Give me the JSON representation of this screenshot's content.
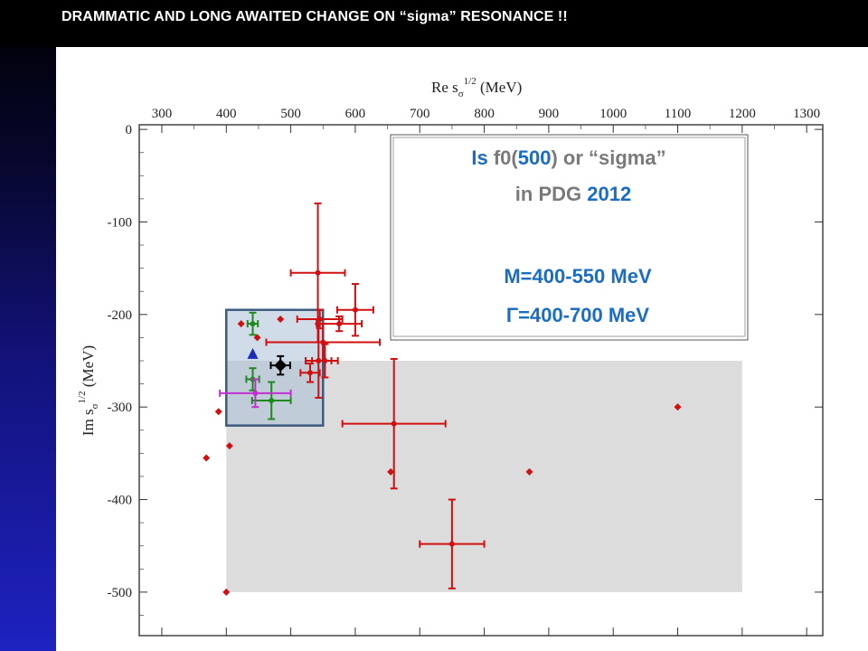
{
  "header": {
    "title": "DRAMMATIC AND LONG AWAITED CHANGE  ON “sigma” RESONANCE !!"
  },
  "chart_data": {
    "type": "scatter",
    "x_axis": {
      "label_main": "Re s",
      "label_sub": "σ",
      "label_sup": "1/2",
      "label_unit": " (MeV)",
      "range": [
        265,
        1325
      ],
      "ticks": [
        300,
        400,
        500,
        600,
        700,
        800,
        900,
        1000,
        1100,
        1200,
        1300
      ]
    },
    "y_axis": {
      "label_main": "Im s",
      "label_sub": "σ",
      "label_sup": "1/2",
      "label_unit": " (MeV)",
      "range": [
        -547,
        5
      ],
      "ticks": [
        0,
        -100,
        -200,
        -300,
        -400,
        -500
      ]
    },
    "regions": [
      {
        "kind": "gray-band",
        "x": [
          400,
          1200
        ],
        "y": [
          -500,
          -250
        ],
        "color": "#dcdcdc"
      },
      {
        "kind": "blue-box",
        "x": [
          400,
          550
        ],
        "y": [
          -320,
          -195
        ],
        "color": "#3d5a80"
      }
    ],
    "info_box": {
      "line1": {
        "is": "Is",
        "name": "f0(",
        "num": "500",
        "close": ") or “sigma”"
      },
      "line2": {
        "pre": "in PDG ",
        "year": "2012"
      },
      "mass": "M=400-550 MeV",
      "width": "Γ=400-700 MeV"
    },
    "colors": {
      "red": "#d01010",
      "green": "#1e8a1e",
      "magenta": "#c030d0",
      "blue": "#1c2db8",
      "black": "#000000",
      "accent_blue": "#1a6dc0",
      "gray_text": "#7a7a7a"
    },
    "points": [
      {
        "x": 542,
        "y": -155,
        "ex": 42,
        "ey": 75,
        "color": "red"
      },
      {
        "x": 600,
        "y": -195,
        "ex": 28,
        "ey": 28,
        "color": "red"
      },
      {
        "x": 545,
        "y": -205,
        "ex": 35,
        "ey": 10,
        "color": "red"
      },
      {
        "x": 575,
        "y": -210,
        "ex": 35,
        "ey": 8,
        "color": "red"
      },
      {
        "x": 550,
        "y": -230,
        "ex": 88,
        "ey": 20,
        "color": "red"
      },
      {
        "x": 543,
        "y": -250,
        "ex": 20,
        "ey": 40,
        "color": "red"
      },
      {
        "x": 553,
        "y": -250,
        "ex": 20,
        "ey": 18,
        "color": "red"
      },
      {
        "x": 530,
        "y": -263,
        "ex": 15,
        "ey": 10,
        "color": "red"
      },
      {
        "x": 660,
        "y": -318,
        "ex": 80,
        "ey": 70,
        "color": "red"
      },
      {
        "x": 750,
        "y": -448,
        "ex": 50,
        "ey": 48,
        "color": "red"
      },
      {
        "x": 423,
        "y": -210,
        "ex": 0,
        "ey": 0,
        "color": "red",
        "marker": "diamond"
      },
      {
        "x": 448,
        "y": -225,
        "ex": 0,
        "ey": 0,
        "color": "red",
        "marker": "diamond"
      },
      {
        "x": 484,
        "y": -205,
        "ex": 0,
        "ey": 0,
        "color": "red",
        "marker": "diamond"
      },
      {
        "x": 388,
        "y": -305,
        "ex": 0,
        "ey": 0,
        "color": "red",
        "marker": "diamond"
      },
      {
        "x": 405,
        "y": -342,
        "ex": 0,
        "ey": 0,
        "color": "red",
        "marker": "diamond"
      },
      {
        "x": 369,
        "y": -355,
        "ex": 0,
        "ey": 0,
        "color": "red",
        "marker": "diamond"
      },
      {
        "x": 400,
        "y": -500,
        "ex": 0,
        "ey": 0,
        "color": "red",
        "marker": "diamond"
      },
      {
        "x": 655,
        "y": -370,
        "ex": 0,
        "ey": 0,
        "color": "red",
        "marker": "diamond"
      },
      {
        "x": 870,
        "y": -370,
        "ex": 0,
        "ey": 0,
        "color": "red",
        "marker": "diamond"
      },
      {
        "x": 1100,
        "y": -300,
        "ex": 0,
        "ey": 0,
        "color": "red",
        "marker": "diamond"
      },
      {
        "x": 441,
        "y": -210,
        "ex": 8,
        "ey": 12,
        "color": "green"
      },
      {
        "x": 441,
        "y": -270,
        "ex": 10,
        "ey": 12,
        "color": "green"
      },
      {
        "x": 470,
        "y": -293,
        "ex": 30,
        "ey": 20,
        "color": "green"
      },
      {
        "x": 445,
        "y": -285,
        "ex": 55,
        "ey": 15,
        "color": "magenta"
      },
      {
        "x": 441,
        "y": -243,
        "ex": 0,
        "ey": 0,
        "color": "blue",
        "marker": "triangle"
      },
      {
        "x": 484,
        "y": -255,
        "ex": 15,
        "ey": 10,
        "color": "black",
        "marker": "diamond-big"
      }
    ]
  }
}
